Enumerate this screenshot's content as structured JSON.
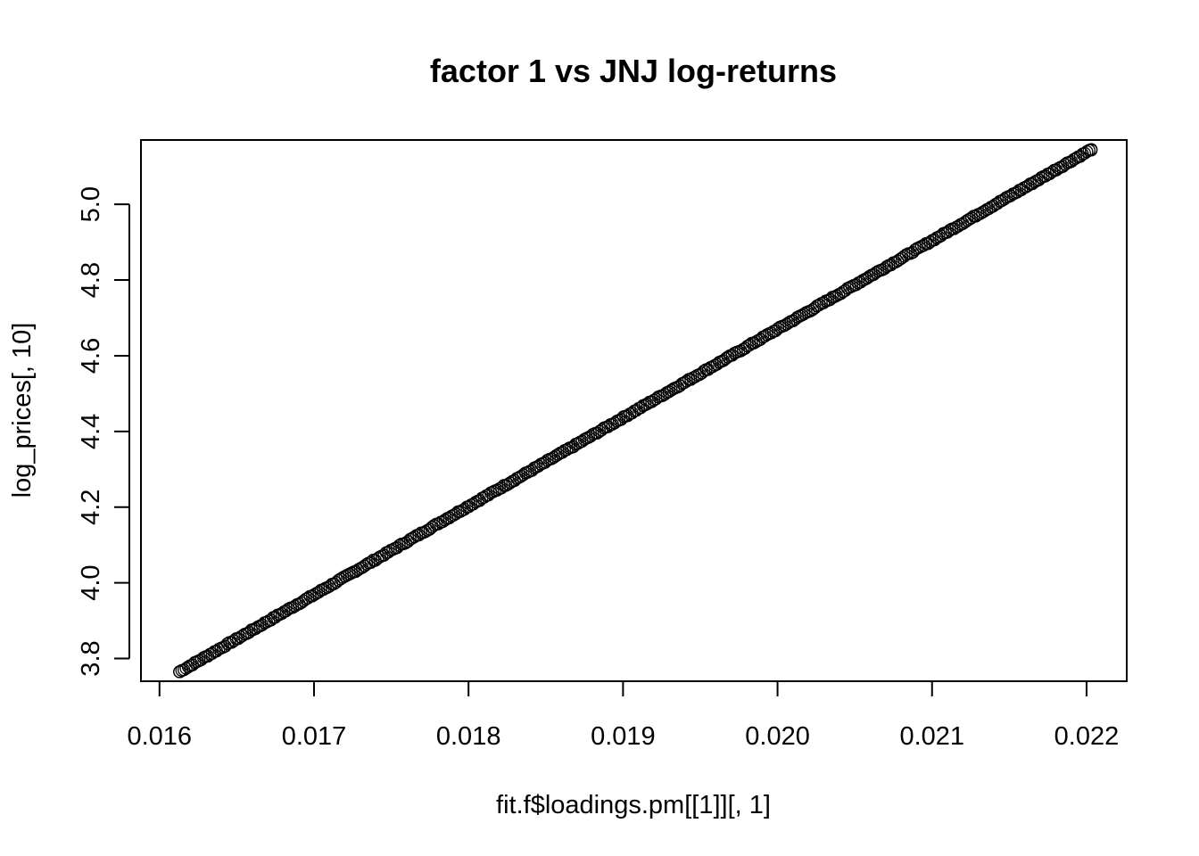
{
  "chart_data": {
    "type": "scatter",
    "title": "factor 1 vs JNJ log-returns",
    "xlabel": "fit.f$loadings.pm[[1]][, 1]",
    "ylabel": "log_prices[, 10]",
    "xlim": [
      0.01588,
      0.02226
    ],
    "ylim": [
      3.74,
      5.17
    ],
    "x_ticks": [
      0.016,
      0.017,
      0.018,
      0.019,
      0.02,
      0.021,
      0.022
    ],
    "x_tick_labels": [
      "0.016",
      "0.017",
      "0.018",
      "0.019",
      "0.020",
      "0.021",
      "0.022"
    ],
    "y_ticks": [
      3.8,
      4.0,
      4.2,
      4.4,
      4.6,
      4.8,
      5.0
    ],
    "y_tick_labels": [
      "3.8",
      "4.0",
      "4.2",
      "4.4",
      "4.6",
      "4.8",
      "5.0"
    ],
    "grid": false,
    "marker": "open-circle",
    "series_color": "#000000",
    "relationship": {
      "slope": 234.5,
      "intercept": 0.0,
      "anchor_points": [
        [
          0.01613,
          3.765
        ],
        [
          0.02203,
          5.145
        ]
      ]
    },
    "x_range_of_points": [
      0.01613,
      0.02203
    ]
  }
}
